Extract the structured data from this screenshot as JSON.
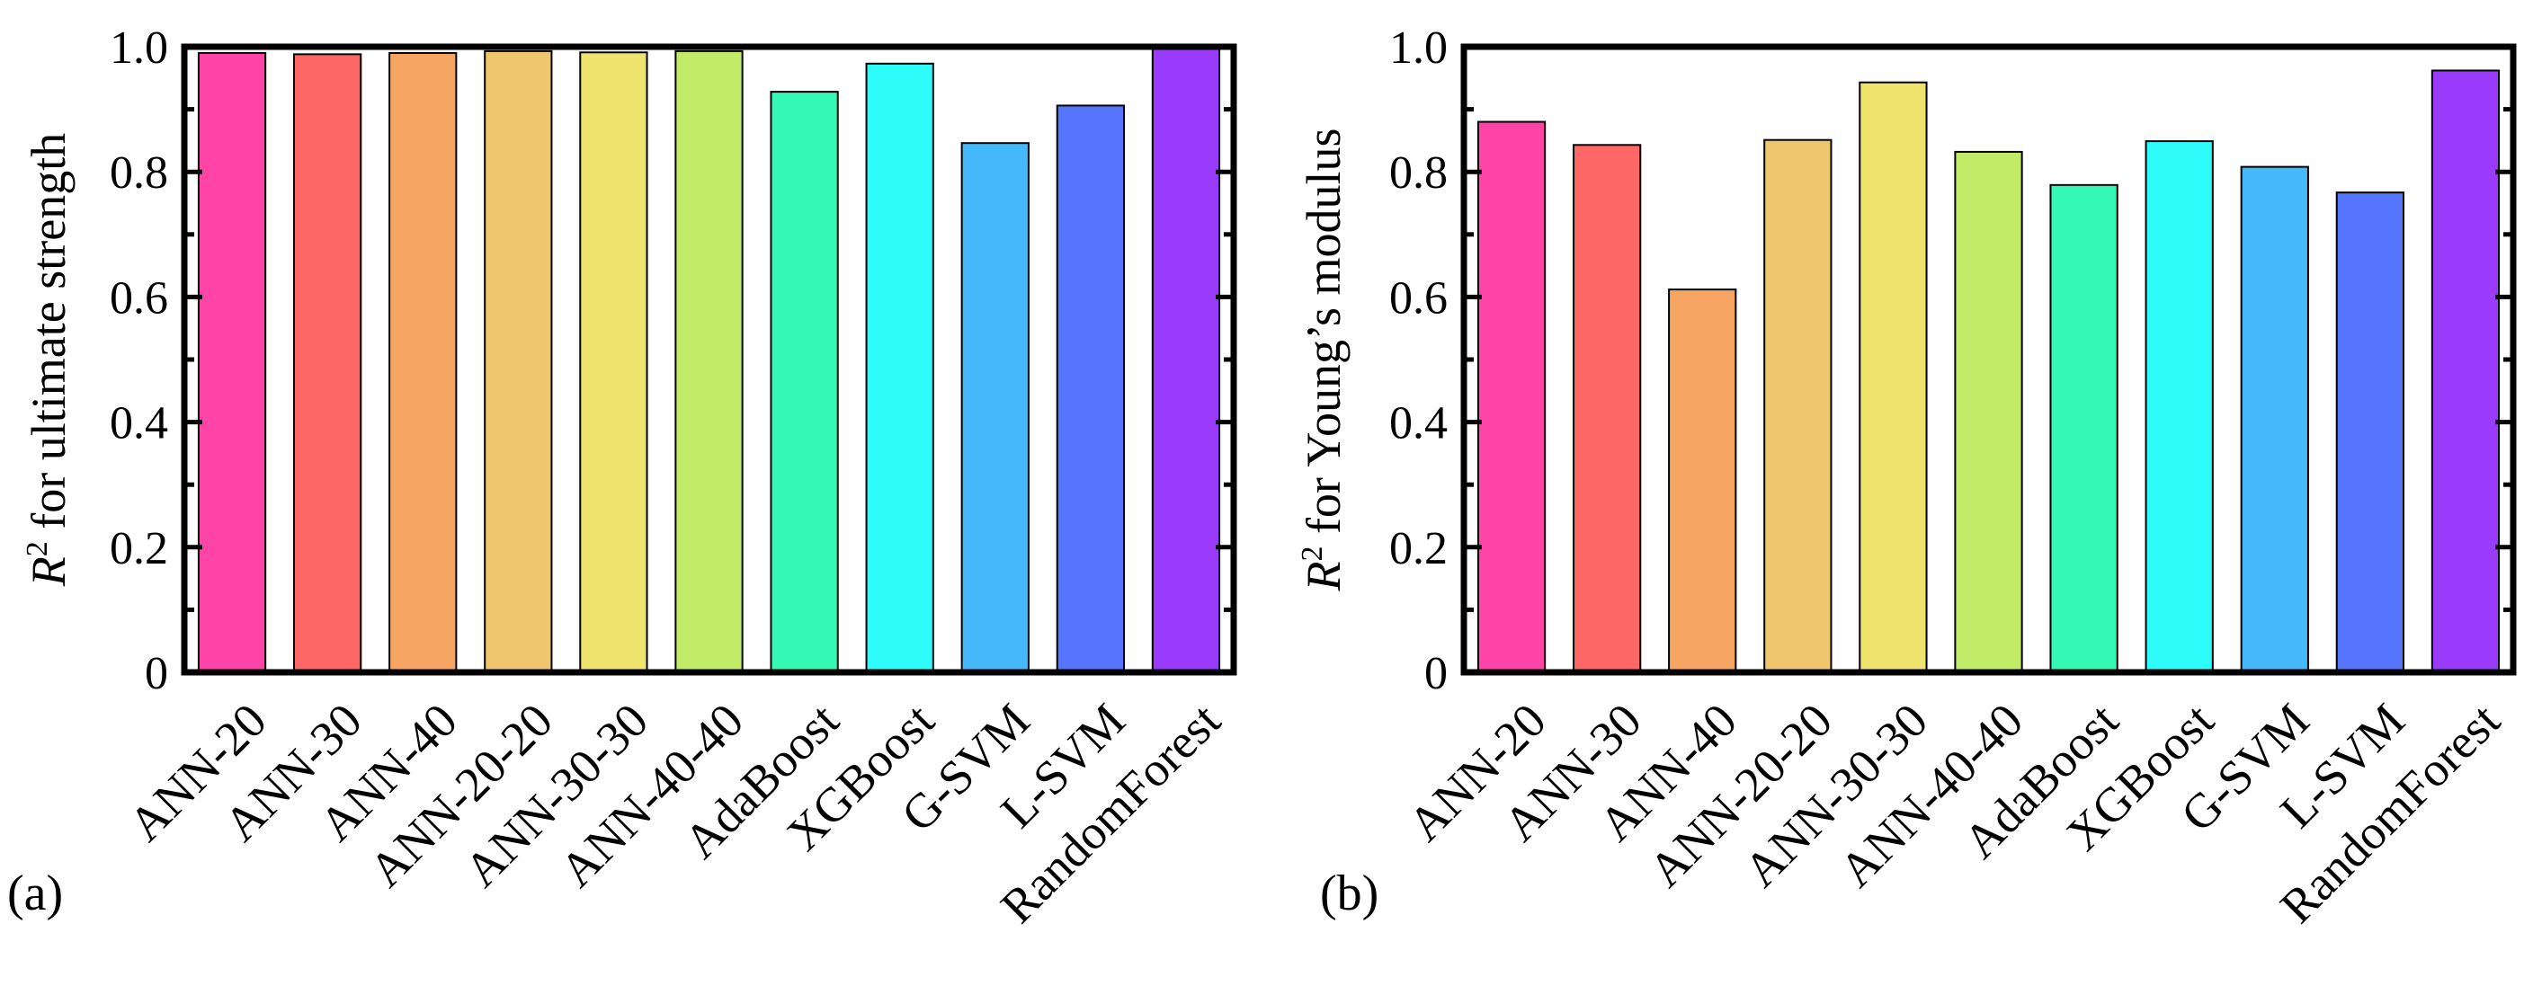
{
  "colors": [
    "#FF44A8",
    "#FF6666",
    "#F5A462",
    "#EFC56E",
    "#EEE46E",
    "#C1EB67",
    "#35F8B6",
    "#2DFCFA",
    "#46B9FB",
    "#5576FC",
    "#9A3AFB"
  ],
  "chart_data": [
    {
      "type": "bar",
      "panel_label": "(a)",
      "categories": [
        "ANN-20",
        "ANN-30",
        "ANN-40",
        "ANN-20-20",
        "ANN-30-30",
        "ANN-40-40",
        "AdaBoost",
        "XGBoost",
        "G-SVM",
        "L-SVM",
        "RandomForest"
      ],
      "values": [
        0.99,
        0.988,
        0.99,
        0.993,
        0.991,
        0.993,
        0.928,
        0.973,
        0.846,
        0.906,
        1.0
      ],
      "ylabel_symbol": "R",
      "ylabel_superscript": "2",
      "ylabel_rest": " for ultimate strength",
      "ylim": [
        0,
        1.0
      ],
      "yticks": [
        0,
        0.2,
        0.4,
        0.6,
        0.8,
        1.0
      ],
      "ytick_labels": [
        "0",
        "0.2",
        "0.4",
        "0.6",
        "0.8",
        "1.0"
      ],
      "grid": false
    },
    {
      "type": "bar",
      "panel_label": "(b)",
      "categories": [
        "ANN-20",
        "ANN-30",
        "ANN-40",
        "ANN-20-20",
        "ANN-30-30",
        "ANN-40-40",
        "AdaBoost",
        "XGBoost",
        "G-SVM",
        "L-SVM",
        "RandomForest"
      ],
      "values": [
        0.88,
        0.843,
        0.612,
        0.851,
        0.943,
        0.832,
        0.779,
        0.849,
        0.808,
        0.767,
        0.962
      ],
      "ylabel_symbol": "R",
      "ylabel_superscript": "2",
      "ylabel_rest": " for Young’s modulus",
      "ylim": [
        0,
        1.0
      ],
      "yticks": [
        0,
        0.2,
        0.4,
        0.6,
        0.8,
        1.0
      ],
      "ytick_labels": [
        "0",
        "0.2",
        "0.4",
        "0.6",
        "0.8",
        "1.0"
      ],
      "grid": false
    }
  ]
}
